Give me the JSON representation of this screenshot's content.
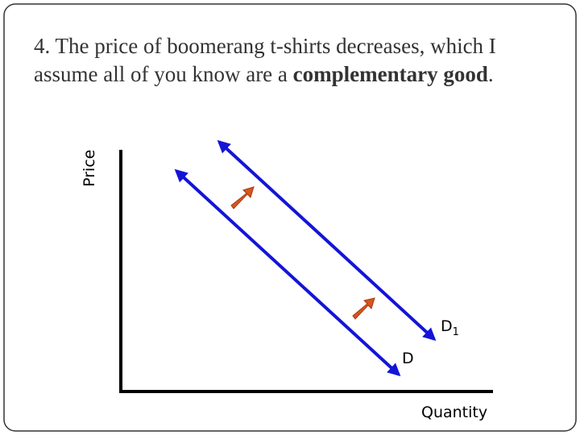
{
  "title": {
    "line1": "4. The price of boomerang t-shirts decreases, which I",
    "line2_start": "assume all of you know are a ",
    "line2_bold": "complementary good",
    "line2_end": "."
  },
  "axes": {
    "y_label": "Price",
    "x_label": "Quantity"
  },
  "curves": [
    {
      "label": "D"
    },
    {
      "label": "D",
      "subscript": "1"
    }
  ]
}
